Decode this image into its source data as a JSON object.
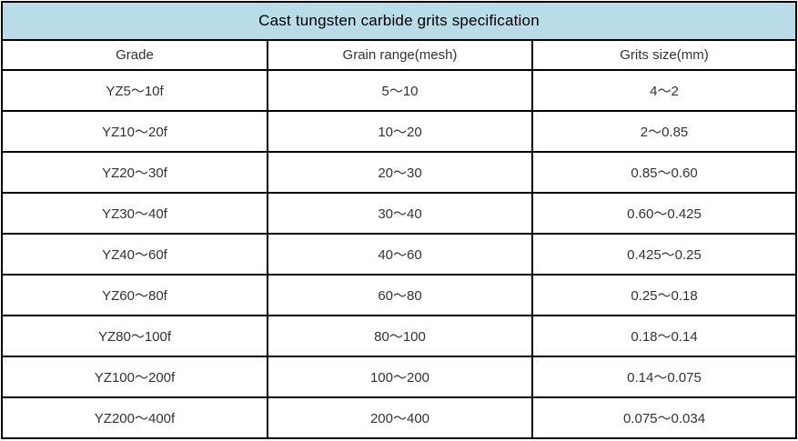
{
  "title": "Cast tungsten carbide grits specification",
  "table": {
    "columns": {
      "grade": "Grade",
      "grain_range": "Grain range(mesh)",
      "grits_size": "Grits size(mm)"
    },
    "rows": [
      {
        "grade": "YZ5～10f",
        "grain_range": "5～10",
        "grits_size": "4～2"
      },
      {
        "grade": "YZ10～20f",
        "grain_range": "10～20",
        "grits_size": "2～0.85"
      },
      {
        "grade": "YZ20～30f",
        "grain_range": "20～30",
        "grits_size": "0.85～0.60"
      },
      {
        "grade": "YZ30～40f",
        "grain_range": "30～40",
        "grits_size": "0.60～0.425"
      },
      {
        "grade": "YZ40～60f",
        "grain_range": "40～60",
        "grits_size": "0.425～0.25"
      },
      {
        "grade": "YZ60～80f",
        "grain_range": "60～80",
        "grits_size": "0.25～0.18"
      },
      {
        "grade": "YZ80～100f",
        "grain_range": "80～100",
        "grits_size": "0.18～0.14"
      },
      {
        "grade": "YZ100～200f",
        "grain_range": "100～200",
        "grits_size": "0.14～0.075"
      },
      {
        "grade": "YZ200～400f",
        "grain_range": "200～400",
        "grits_size": "0.075～0.034"
      }
    ]
  },
  "colors": {
    "title_background": "#b8dce8",
    "border": "#000000",
    "cell_text": "#333333"
  }
}
